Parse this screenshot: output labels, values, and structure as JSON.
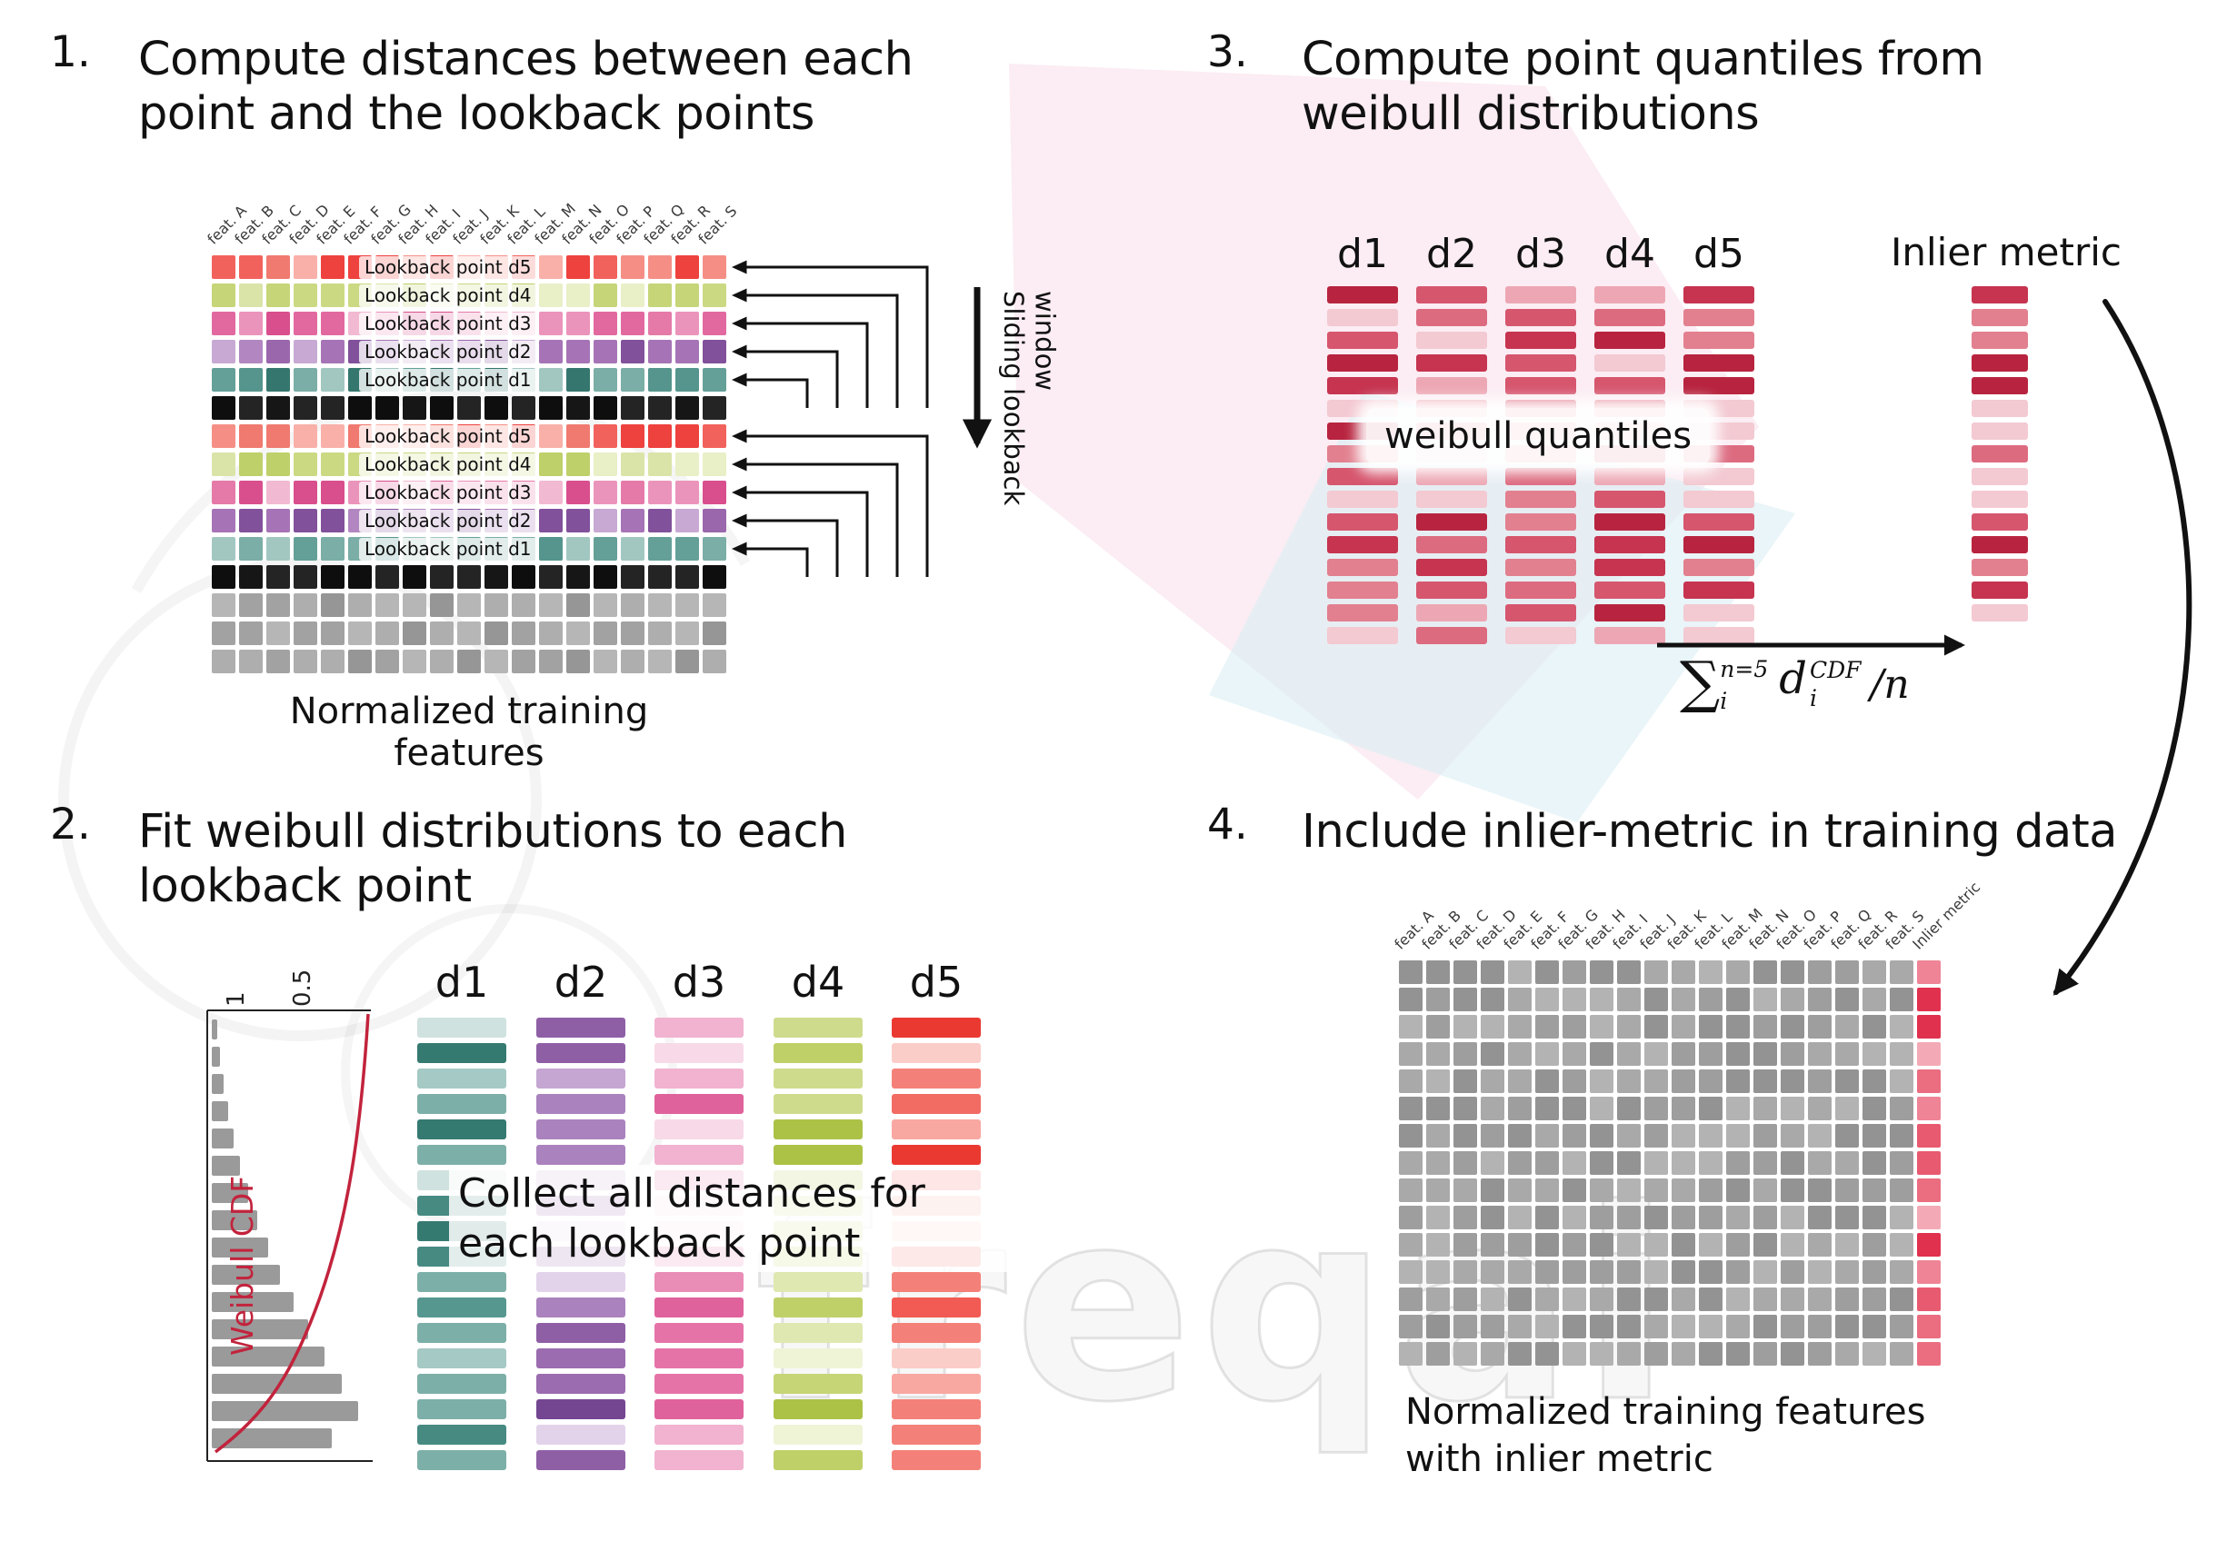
{
  "watermark": {
    "text": "freqai"
  },
  "palettes": {
    "red": [
      "#f2625c",
      "#f58f86",
      "#ee423e",
      "#f9b0a9",
      "#f07a70"
    ],
    "green": [
      "#ccd983",
      "#dbe4a8",
      "#bed06a",
      "#e9efc6",
      "#c5d578"
    ],
    "pink": [
      "#e2699f",
      "#eb94bb",
      "#d94f8d",
      "#f2b9d2",
      "#e57aa9"
    ],
    "purple": [
      "#9a67ad",
      "#b287c1",
      "#82519b",
      "#c7a9d3",
      "#a674b6"
    ],
    "teal": [
      "#55958d",
      "#7aaea6",
      "#35776e",
      "#a2c7c1",
      "#64a098"
    ],
    "black": [
      "#161616",
      "#242424",
      "#0e0e0e"
    ],
    "gray": [
      "#a2a2a2",
      "#aeaeae",
      "#969696",
      "#b6b6b6"
    ],
    "quantile": [
      "#d6566e",
      "#e2808f",
      "#c63450",
      "#eda7b4",
      "#b8243f",
      "#f3c9d2",
      "#dd6b80"
    ],
    "d1": [
      "#569790",
      "#7cafa8",
      "#357a71",
      "#a5c9c4",
      "#cfe2df",
      "#468a82"
    ],
    "d2": [
      "#8f5fa6",
      "#aa82bd",
      "#744691",
      "#c5a6d2",
      "#e2d3ea",
      "#9b6cb0"
    ],
    "d3": [
      "#e0629c",
      "#e98cb6",
      "#d43f87",
      "#f1b3cf",
      "#f8d9e7",
      "#e573a8"
    ],
    "d4": [
      "#bfd068",
      "#cfdb8c",
      "#abc247",
      "#dfe8b0",
      "#eff4d7",
      "#c6d575"
    ],
    "d5": [
      "#f15b53",
      "#f48179",
      "#ea3931",
      "#f8a8a1",
      "#fbcdc8",
      "#f26c64"
    ],
    "gray4": [
      "#9e9e9e",
      "#a9a9a9",
      "#939393",
      "#b3b3b3"
    ],
    "inlier4": [
      "#e85a70",
      "#ee8495",
      "#e0314e",
      "#f3aab6",
      "#ea6d80"
    ]
  },
  "panel1": {
    "number": "1.",
    "title": "Compute distances between each point and the lookback points",
    "caption": "Normalized training features",
    "sliding_label": "Sliding lookback window",
    "features": [
      "feat. A",
      "feat. B",
      "feat. C",
      "feat. D",
      "feat. E",
      "feat. F",
      "feat. G",
      "feat. H",
      "feat. I",
      "feat. J",
      "feat. K",
      "feat. L",
      "feat. M",
      "feat. N",
      "feat. O",
      "feat. P",
      "feat. Q",
      "feat. R",
      "feat. S"
    ],
    "grid": {
      "cols": 19,
      "rows": [
        {
          "palette": "red",
          "label": "Lookback point d5"
        },
        {
          "palette": "green",
          "label": "Lookback point d4"
        },
        {
          "palette": "pink",
          "label": "Lookback point d3"
        },
        {
          "palette": "purple",
          "label": "Lookback point d2"
        },
        {
          "palette": "teal",
          "label": "Lookback point d1"
        },
        {
          "palette": "black"
        },
        {
          "palette": "red",
          "label": "Lookback point d5"
        },
        {
          "palette": "green",
          "label": "Lookback point d4"
        },
        {
          "palette": "pink",
          "label": "Lookback point d3"
        },
        {
          "palette": "purple",
          "label": "Lookback point d2"
        },
        {
          "palette": "teal",
          "label": "Lookback point d1"
        },
        {
          "palette": "black"
        },
        {
          "palette": "gray"
        },
        {
          "palette": "gray"
        },
        {
          "palette": "gray"
        }
      ]
    }
  },
  "panel2": {
    "number": "2.",
    "title": "Fit weibull distributions to each lookback point",
    "overlay": "Collect all distances for each lookback point",
    "bars_per_column": 18,
    "columns": [
      {
        "header": "d1",
        "palette": "d1"
      },
      {
        "header": "d2",
        "palette": "d2"
      },
      {
        "header": "d3",
        "palette": "d3"
      },
      {
        "header": "d4",
        "palette": "d4"
      },
      {
        "header": "d5",
        "palette": "d5"
      }
    ],
    "cdf": {
      "label": "Weibull CDF",
      "ticks": [
        "1",
        "0.5"
      ]
    },
    "hist": [
      6,
      9,
      13,
      18,
      24,
      31,
      40,
      50,
      62,
      75,
      90,
      106,
      124,
      143,
      161,
      132
    ]
  },
  "panel3": {
    "number": "3.",
    "title": "Compute point quantiles from weibull distributions",
    "overlay": "weibull quantiles",
    "columns": [
      "d1",
      "d2",
      "d3",
      "d4",
      "d5"
    ],
    "bars_per_column": 16,
    "inlier_label": "Inlier metric",
    "inlier_bars": 15,
    "formula": {
      "sigma": "∑",
      "upper": "n=5",
      "lower": "i",
      "var": "d",
      "var_sup": "CDF",
      "var_sub": "i",
      "divisor": "/n"
    }
  },
  "panel4": {
    "number": "4.",
    "title": "Include inlier-metric in training data",
    "caption": "Normalized training features with inlier metric",
    "features": [
      "feat. A",
      "feat. B",
      "feat. C",
      "feat. D",
      "feat. E",
      "feat. F",
      "feat. G",
      "feat. H",
      "feat. I",
      "feat. J",
      "feat. K",
      "feat. L",
      "feat. M",
      "feat. N",
      "feat. O",
      "feat. P",
      "feat. Q",
      "feat. R",
      "feat. S",
      "Inlier metric"
    ],
    "grid": {
      "cols": 20,
      "rows": 15
    }
  }
}
